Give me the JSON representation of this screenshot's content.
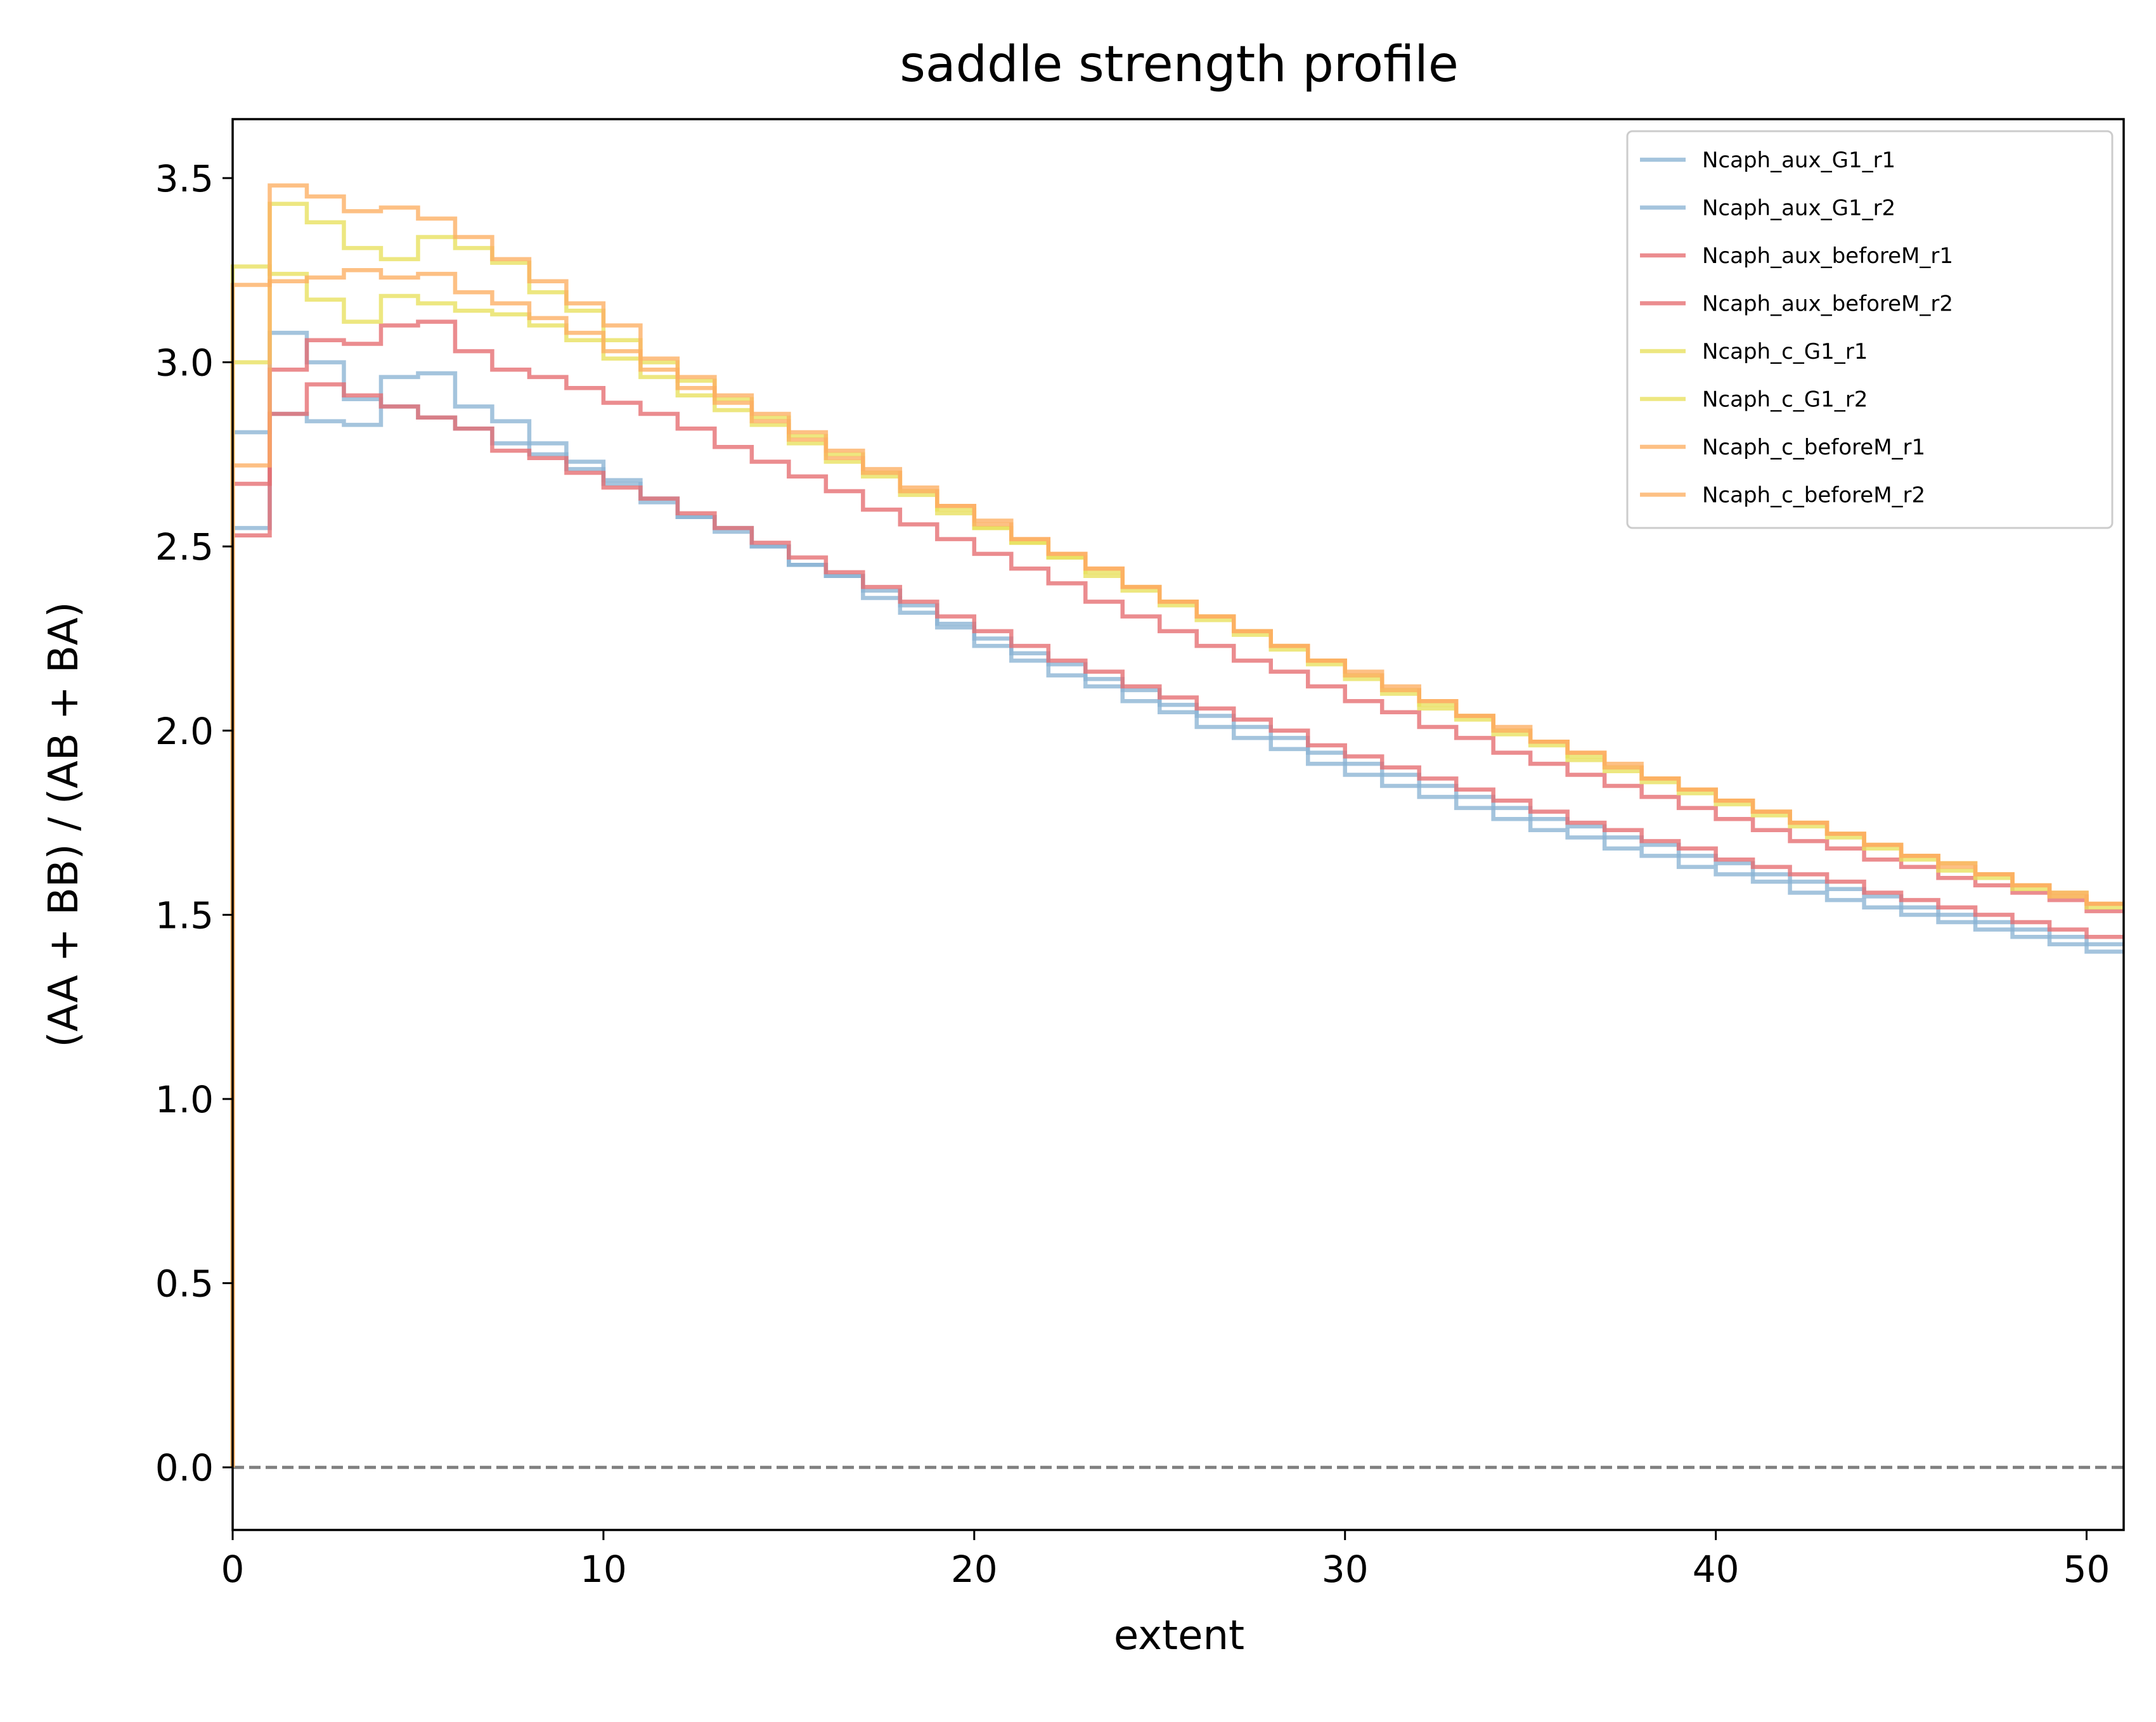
{
  "chart_data": {
    "type": "line",
    "step": true,
    "title": "saddle strength profile",
    "xlabel": "extent",
    "ylabel": "(AA + BB) / (AB + BA)",
    "xlim": [
      0,
      51
    ],
    "ylim": [
      -0.17,
      3.66
    ],
    "xticks": [
      0,
      10,
      20,
      30,
      40,
      50
    ],
    "xtick_labels": [
      "0",
      "10",
      "20",
      "30",
      "40",
      "50"
    ],
    "yticks": [
      0.0,
      0.5,
      1.0,
      1.5,
      2.0,
      2.5,
      3.0,
      3.5
    ],
    "ytick_labels": [
      "0.0",
      "0.5",
      "1.0",
      "1.5",
      "2.0",
      "2.5",
      "3.0",
      "3.5"
    ],
    "reference_line": {
      "y": 0,
      "style": "dashed",
      "color": "#808080"
    },
    "legend": {
      "position": "top-right"
    },
    "grid": false,
    "x": [
      0,
      1,
      2,
      3,
      4,
      5,
      6,
      7,
      8,
      9,
      10,
      11,
      12,
      13,
      14,
      15,
      16,
      17,
      18,
      19,
      20,
      21,
      22,
      23,
      24,
      25,
      26,
      27,
      28,
      29,
      30,
      31,
      32,
      33,
      34,
      35,
      36,
      37,
      38,
      39,
      40,
      41,
      42,
      43,
      44,
      45,
      46,
      47,
      48,
      49,
      50,
      51
    ],
    "series": [
      {
        "name": "Ncaph_aux_G1_r1",
        "color": "#8ab4d4",
        "values": [
          0,
          2.81,
          3.08,
          3.0,
          2.9,
          2.88,
          2.85,
          2.82,
          2.78,
          2.75,
          2.71,
          2.67,
          2.62,
          2.58,
          2.54,
          2.5,
          2.45,
          2.42,
          2.38,
          2.34,
          2.29,
          2.25,
          2.21,
          2.18,
          2.14,
          2.11,
          2.07,
          2.04,
          2.01,
          1.98,
          1.94,
          1.91,
          1.88,
          1.85,
          1.82,
          1.79,
          1.76,
          1.74,
          1.71,
          1.69,
          1.66,
          1.64,
          1.61,
          1.59,
          1.57,
          1.55,
          1.52,
          1.5,
          1.48,
          1.46,
          1.44,
          1.42
        ]
      },
      {
        "name": "Ncaph_aux_G1_r2",
        "color": "#8ab4d4",
        "values": [
          0,
          2.55,
          2.86,
          2.84,
          2.83,
          2.96,
          2.97,
          2.88,
          2.84,
          2.78,
          2.73,
          2.68,
          2.63,
          2.58,
          2.55,
          2.5,
          2.45,
          2.42,
          2.36,
          2.32,
          2.28,
          2.23,
          2.19,
          2.15,
          2.12,
          2.08,
          2.05,
          2.01,
          1.98,
          1.95,
          1.91,
          1.88,
          1.85,
          1.82,
          1.79,
          1.76,
          1.73,
          1.71,
          1.68,
          1.66,
          1.63,
          1.61,
          1.59,
          1.56,
          1.54,
          1.52,
          1.5,
          1.48,
          1.46,
          1.44,
          1.42,
          1.4
        ]
      },
      {
        "name": "Ncaph_aux_beforeM_r1",
        "color": "#e66c70",
        "values": [
          0,
          2.53,
          2.86,
          2.94,
          2.91,
          2.88,
          2.85,
          2.82,
          2.76,
          2.74,
          2.7,
          2.66,
          2.63,
          2.59,
          2.55,
          2.51,
          2.47,
          2.43,
          2.39,
          2.35,
          2.31,
          2.27,
          2.23,
          2.19,
          2.16,
          2.12,
          2.09,
          2.06,
          2.03,
          2.0,
          1.96,
          1.93,
          1.9,
          1.87,
          1.84,
          1.81,
          1.78,
          1.75,
          1.73,
          1.7,
          1.68,
          1.65,
          1.63,
          1.61,
          1.59,
          1.56,
          1.54,
          1.52,
          1.5,
          1.48,
          1.46,
          1.44
        ]
      },
      {
        "name": "Ncaph_aux_beforeM_r2",
        "color": "#e66c70",
        "values": [
          0,
          2.67,
          2.98,
          3.06,
          3.05,
          3.1,
          3.11,
          3.03,
          2.98,
          2.96,
          2.93,
          2.89,
          2.86,
          2.82,
          2.77,
          2.73,
          2.69,
          2.65,
          2.6,
          2.56,
          2.52,
          2.48,
          2.44,
          2.4,
          2.35,
          2.31,
          2.27,
          2.23,
          2.19,
          2.16,
          2.12,
          2.08,
          2.05,
          2.01,
          1.98,
          1.94,
          1.91,
          1.88,
          1.85,
          1.82,
          1.79,
          1.76,
          1.73,
          1.7,
          1.68,
          1.65,
          1.63,
          1.6,
          1.58,
          1.56,
          1.54,
          1.51
        ]
      },
      {
        "name": "Ncaph_c_G1_r1",
        "color": "#e8e05c",
        "values": [
          0,
          3.26,
          3.24,
          3.17,
          3.11,
          3.18,
          3.16,
          3.14,
          3.13,
          3.1,
          3.06,
          3.01,
          2.96,
          2.91,
          2.87,
          2.83,
          2.78,
          2.73,
          2.69,
          2.64,
          2.59,
          2.55,
          2.51,
          2.47,
          2.43,
          2.39,
          2.35,
          2.31,
          2.27,
          2.23,
          2.19,
          2.15,
          2.11,
          2.07,
          2.04,
          2.0,
          1.97,
          1.93,
          1.9,
          1.87,
          1.84,
          1.81,
          1.78,
          1.75,
          1.72,
          1.69,
          1.66,
          1.64,
          1.61,
          1.58,
          1.56,
          1.53
        ]
      },
      {
        "name": "Ncaph_c_G1_r2",
        "color": "#e8e05c",
        "values": [
          0,
          3.0,
          3.43,
          3.38,
          3.31,
          3.28,
          3.34,
          3.31,
          3.27,
          3.19,
          3.14,
          3.06,
          3.0,
          2.95,
          2.9,
          2.85,
          2.8,
          2.75,
          2.7,
          2.65,
          2.6,
          2.55,
          2.51,
          2.47,
          2.42,
          2.38,
          2.34,
          2.3,
          2.26,
          2.22,
          2.18,
          2.14,
          2.1,
          2.06,
          2.03,
          1.99,
          1.96,
          1.92,
          1.89,
          1.86,
          1.83,
          1.8,
          1.77,
          1.74,
          1.71,
          1.68,
          1.65,
          1.62,
          1.6,
          1.57,
          1.55,
          1.52
        ]
      },
      {
        "name": "Ncaph_c_beforeM_r1",
        "color": "#fdae61",
        "values": [
          0,
          3.21,
          3.22,
          3.23,
          3.25,
          3.23,
          3.24,
          3.19,
          3.16,
          3.12,
          3.08,
          3.03,
          2.98,
          2.93,
          2.89,
          2.84,
          2.79,
          2.74,
          2.7,
          2.65,
          2.61,
          2.56,
          2.52,
          2.48,
          2.44,
          2.39,
          2.35,
          2.31,
          2.27,
          2.23,
          2.19,
          2.15,
          2.11,
          2.08,
          2.04,
          2.0,
          1.97,
          1.94,
          1.9,
          1.87,
          1.84,
          1.81,
          1.78,
          1.75,
          1.72,
          1.69,
          1.66,
          1.64,
          1.61,
          1.58,
          1.56,
          1.53
        ]
      },
      {
        "name": "Ncaph_c_beforeM_r2",
        "color": "#fdae61",
        "values": [
          0,
          2.72,
          3.48,
          3.45,
          3.41,
          3.42,
          3.39,
          3.34,
          3.28,
          3.22,
          3.16,
          3.1,
          3.01,
          2.96,
          2.91,
          2.86,
          2.81,
          2.76,
          2.71,
          2.66,
          2.61,
          2.57,
          2.52,
          2.48,
          2.44,
          2.39,
          2.35,
          2.31,
          2.27,
          2.23,
          2.19,
          2.16,
          2.12,
          2.08,
          2.04,
          2.01,
          1.97,
          1.94,
          1.91,
          1.87,
          1.84,
          1.81,
          1.78,
          1.75,
          1.72,
          1.69,
          1.66,
          1.63,
          1.61,
          1.58,
          1.55,
          1.53
        ]
      }
    ]
  }
}
